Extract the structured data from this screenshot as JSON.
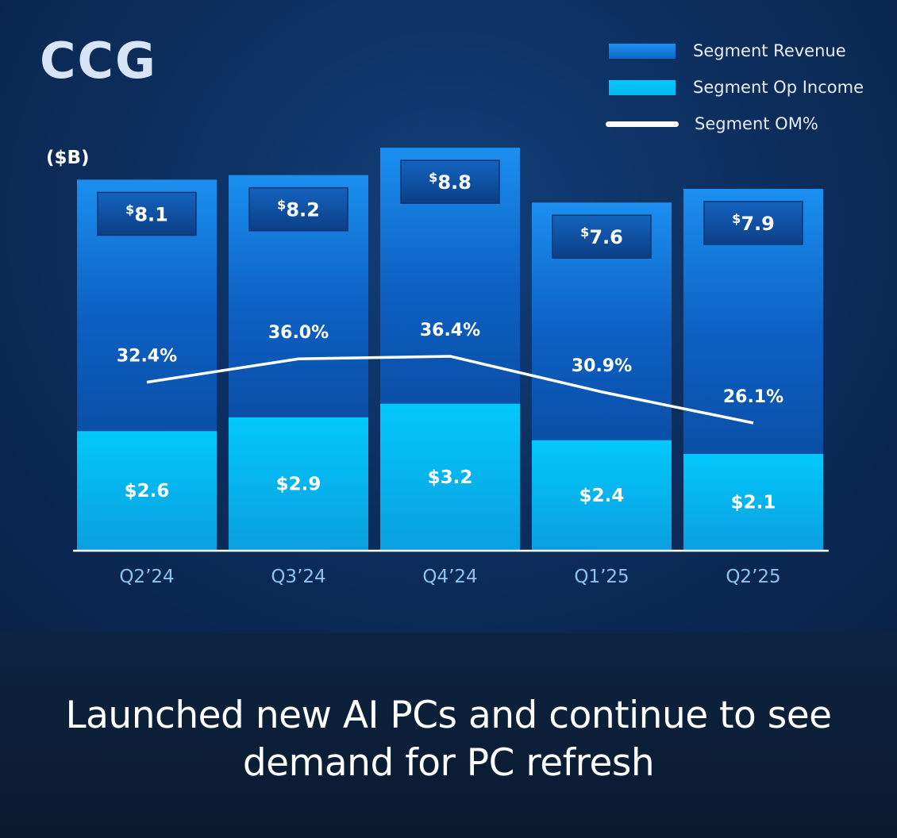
{
  "brand": "CCG",
  "unit_label": "($B)",
  "caption_lines": [
    "Launched new AI PCs and continue to see",
    "demand for PC refresh"
  ],
  "colors": {
    "revenue": "#0f66c9",
    "op_income": "#06b8ef",
    "om_line": "#ffffff",
    "tick_text": "#8ec2f2"
  },
  "legend": [
    {
      "label": "Segment  Revenue",
      "kind": "revenue-swatch"
    },
    {
      "label": "Segment  Op Income",
      "kind": "op-income-swatch"
    },
    {
      "label": "Segment  OM%",
      "kind": "om-line"
    }
  ],
  "chart_data": {
    "type": "bar",
    "categories": [
      "Q2’24",
      "Q3’24",
      "Q4’24",
      "Q1’25",
      "Q2’25"
    ],
    "series": [
      {
        "name": "Segment  Revenue",
        "values": [
          8.1,
          8.2,
          8.8,
          7.6,
          7.9
        ],
        "labels": [
          "8.1",
          "8.2",
          "8.8",
          "7.6",
          "7.9"
        ]
      },
      {
        "name": "Segment  Op Income",
        "values": [
          2.6,
          2.9,
          3.2,
          2.4,
          2.1
        ],
        "labels": [
          "$2.6",
          "$2.9",
          "$3.2",
          "$2.4",
          "$2.1"
        ]
      },
      {
        "name": "Segment  OM%",
        "type": "line",
        "values": [
          32.4,
          36.0,
          36.4,
          30.9,
          26.1
        ],
        "labels": [
          "32.4%",
          "36.0%",
          "36.4%",
          "30.9%",
          "26.1%"
        ]
      }
    ],
    "currency_symbol": "$",
    "ylim": [
      0,
      8.8
    ]
  }
}
